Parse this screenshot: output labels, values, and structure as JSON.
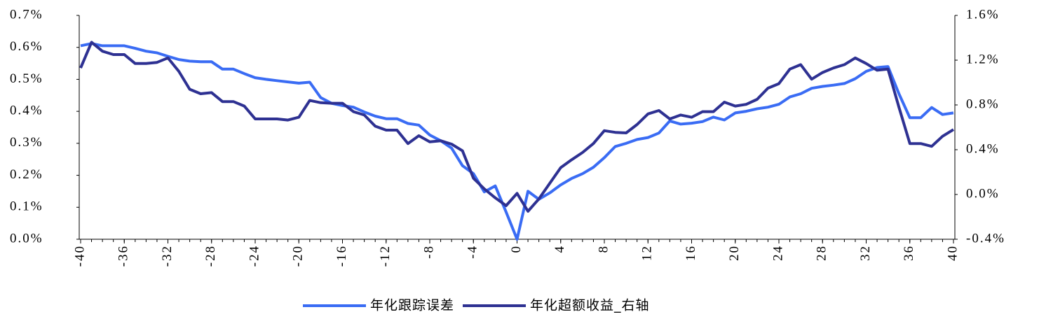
{
  "chart_data": {
    "type": "line",
    "x": [
      -40,
      -39,
      -38,
      -37,
      -36,
      -35,
      -34,
      -33,
      -32,
      -31,
      -30,
      -29,
      -28,
      -27,
      -26,
      -25,
      -24,
      -23,
      -22,
      -21,
      -20,
      -19,
      -18,
      -17,
      -16,
      -15,
      -14,
      -13,
      -12,
      -11,
      -10,
      -9,
      -8,
      -7,
      -6,
      -5,
      -4,
      -3,
      -2,
      -1,
      0,
      1,
      2,
      3,
      4,
      5,
      6,
      7,
      8,
      9,
      10,
      11,
      12,
      13,
      14,
      15,
      16,
      17,
      18,
      19,
      20,
      21,
      22,
      23,
      24,
      25,
      26,
      27,
      28,
      29,
      30,
      31,
      32,
      33,
      34,
      35,
      36,
      37,
      38,
      39,
      40
    ],
    "series": [
      {
        "name": "年化跟踪误差",
        "color": "#3a6cf4",
        "values": [
          0.605,
          0.612,
          0.605,
          0.605,
          0.605,
          0.597,
          0.588,
          0.583,
          0.572,
          0.562,
          0.557,
          0.555,
          0.555,
          0.532,
          0.532,
          0.518,
          0.505,
          0.5,
          0.496,
          0.492,
          0.488,
          0.491,
          0.443,
          0.425,
          0.418,
          0.413,
          0.398,
          0.385,
          0.377,
          0.377,
          0.362,
          0.357,
          0.326,
          0.308,
          0.285,
          0.23,
          0.205,
          0.148,
          0.167,
          0.085,
          0.0,
          0.15,
          0.125,
          0.145,
          0.17,
          0.19,
          0.205,
          0.225,
          0.255,
          0.29,
          0.3,
          0.312,
          0.318,
          0.332,
          0.37,
          0.36,
          0.363,
          0.368,
          0.382,
          0.373,
          0.395,
          0.4,
          0.408,
          0.413,
          0.422,
          0.445,
          0.455,
          0.472,
          0.478,
          0.482,
          0.487,
          0.502,
          0.525,
          0.537,
          0.54,
          0.455,
          0.38,
          0.38,
          0.412,
          0.39,
          0.395
        ]
      },
      {
        "name": "年化超额收益_右轴",
        "color": "#2e3192",
        "axis": "y2",
        "values": [
          1.13,
          1.36,
          1.28,
          1.25,
          1.25,
          1.17,
          1.17,
          1.18,
          1.22,
          1.1,
          0.94,
          0.9,
          0.91,
          0.83,
          0.83,
          0.79,
          0.675,
          0.675,
          0.675,
          0.665,
          0.69,
          0.84,
          0.82,
          0.815,
          0.815,
          0.74,
          0.71,
          0.61,
          0.575,
          0.575,
          0.455,
          0.525,
          0.47,
          0.48,
          0.45,
          0.39,
          0.145,
          0.05,
          -0.03,
          -0.1,
          0.01,
          -0.15,
          -0.04,
          0.1,
          0.24,
          0.31,
          0.375,
          0.455,
          0.57,
          0.555,
          0.55,
          0.625,
          0.72,
          0.75,
          0.675,
          0.71,
          0.69,
          0.74,
          0.74,
          0.825,
          0.79,
          0.805,
          0.85,
          0.95,
          0.99,
          1.12,
          1.16,
          1.03,
          1.09,
          1.13,
          1.16,
          1.22,
          1.17,
          1.11,
          1.12,
          0.78,
          0.455,
          0.455,
          0.43,
          0.52,
          0.58
        ]
      }
    ],
    "xlim": [
      -40,
      40
    ],
    "xticks": [
      -40,
      -36,
      -32,
      -28,
      -24,
      -20,
      -16,
      -12,
      -8,
      -4,
      0,
      4,
      8,
      12,
      16,
      20,
      24,
      28,
      32,
      36,
      40
    ],
    "ylim": [
      0,
      0.7
    ],
    "yticks": [
      {
        "value": 0,
        "label": "0.0%"
      },
      {
        "value": 0.1,
        "label": "0.1%"
      },
      {
        "value": 0.2,
        "label": "0.2%"
      },
      {
        "value": 0.3,
        "label": "0.3%"
      },
      {
        "value": 0.4,
        "label": "0.4%"
      },
      {
        "value": 0.5,
        "label": "0.5%"
      },
      {
        "value": 0.6,
        "label": "0.6%"
      },
      {
        "value": 0.7,
        "label": "0.7%"
      }
    ],
    "y2lim": [
      -0.4,
      1.6
    ],
    "y2ticks": [
      {
        "value": -0.4,
        "label": "-0.4%"
      },
      {
        "value": 0,
        "label": "0.0%"
      },
      {
        "value": 0.4,
        "label": "0.4%"
      },
      {
        "value": 0.8,
        "label": "0.8%"
      },
      {
        "value": 1.2,
        "label": "1.2%"
      },
      {
        "value": 1.6,
        "label": "1.6%"
      }
    ],
    "legend": "bottom"
  }
}
